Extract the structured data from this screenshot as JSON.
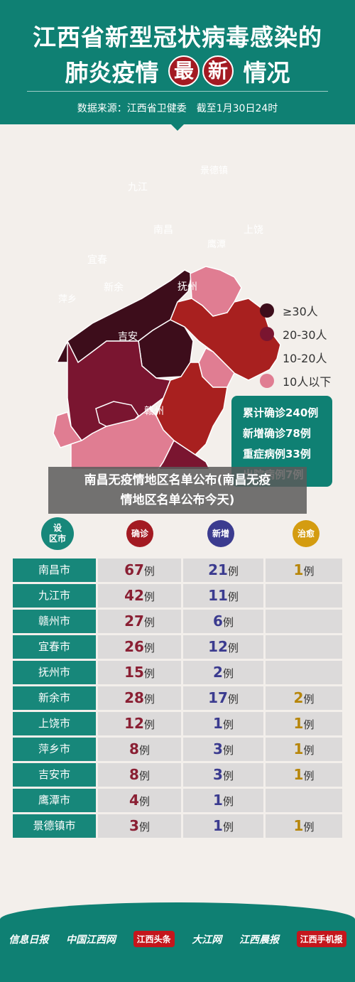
{
  "header": {
    "title_line1": "江西省新型冠状病毒感染的",
    "title_line2_a": "肺炎疫情",
    "title_line2_b": "最",
    "title_line2_c": "新",
    "title_line2_d": "情况",
    "source": "数据来源：江西省卫健委　截至1月30日24时"
  },
  "map": {
    "regions": {
      "jiujiang": "九江",
      "nanchang": "南昌",
      "jingdezhen": "景德镇",
      "shangrao": "上饶",
      "yingtan": "鹰潭",
      "yichun": "宜春",
      "xinyu": "新余",
      "fuzhou": "抚州",
      "pingxiang": "萍乡",
      "jian": "吉安",
      "ganzhou": "赣州"
    },
    "colors": {
      "level1": "#3d0d1b",
      "level2": "#7a1530",
      "level3": "#a8201f",
      "level4": "#e07d92"
    }
  },
  "legend": [
    "≥30人",
    "20-30人",
    "10-20人",
    "10人以下"
  ],
  "stats": [
    "累计确诊240例",
    "新增确诊78例",
    "重症病例33例",
    "出院病例7例"
  ],
  "overlay": {
    "line1": "南昌无疫情地区名单公布(南昌无疫",
    "line2": "情地区名单公布今天)"
  },
  "table": {
    "headers": {
      "city": "设\n区市",
      "confirmed": "确诊",
      "new": "新增",
      "cured": "治愈"
    },
    "unit": "例",
    "rows": [
      {
        "city": "南昌市",
        "confirmed": "67",
        "new": "21",
        "cured": "1"
      },
      {
        "city": "九江市",
        "confirmed": "42",
        "new": "11",
        "cured": ""
      },
      {
        "city": "赣州市",
        "confirmed": "27",
        "new": "6",
        "cured": ""
      },
      {
        "city": "宜春市",
        "confirmed": "26",
        "new": "12",
        "cured": ""
      },
      {
        "city": "抚州市",
        "confirmed": "15",
        "new": "2",
        "cured": ""
      },
      {
        "city": "新余市",
        "confirmed": "28",
        "new": "17",
        "cured": "2"
      },
      {
        "city": "上饶市",
        "confirmed": "12",
        "new": "1",
        "cured": "1"
      },
      {
        "city": "萍乡市",
        "confirmed": "8",
        "new": "3",
        "cured": "1"
      },
      {
        "city": "吉安市",
        "confirmed": "8",
        "new": "3",
        "cured": "1"
      },
      {
        "city": "鹰潭市",
        "confirmed": "4",
        "new": "1",
        "cured": ""
      },
      {
        "city": "景德镇市",
        "confirmed": "3",
        "new": "1",
        "cured": "1"
      }
    ]
  },
  "footer": {
    "logos": [
      "信息日报",
      "中国江西网",
      "江西头条",
      "大江网",
      "江西晨报",
      "江西手机报"
    ]
  }
}
